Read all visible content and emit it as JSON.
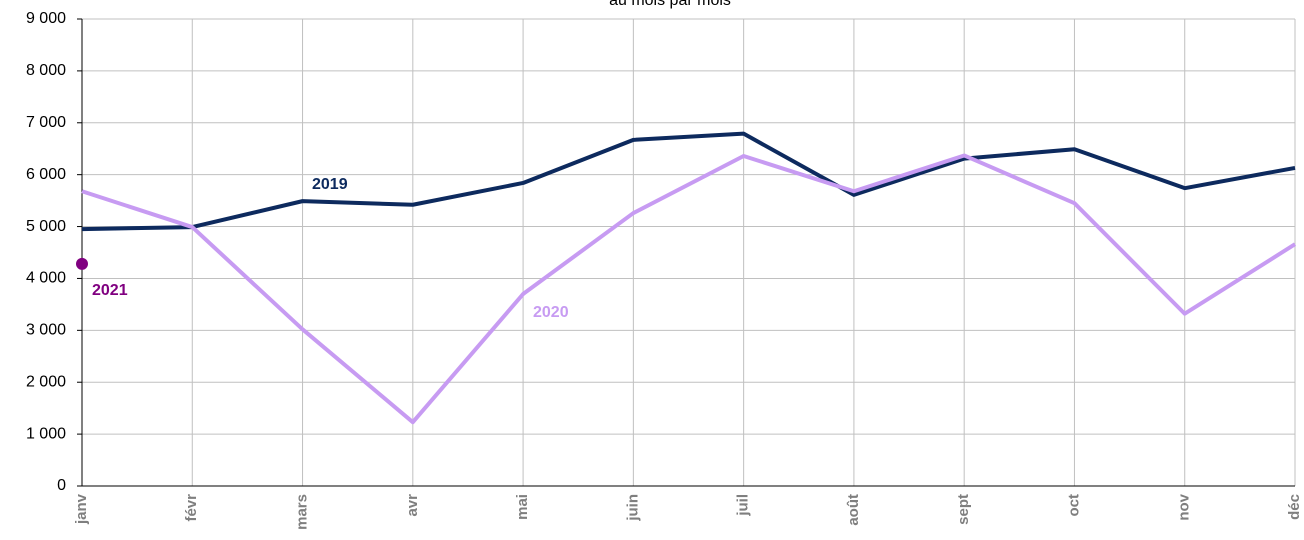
{
  "chart_data": {
    "type": "line",
    "title": "au mois par mois",
    "categories": [
      "janv",
      "févr",
      "mars",
      "avr",
      "mai",
      "juin",
      "juil",
      "août",
      "sept",
      "oct",
      "nov",
      "déc"
    ],
    "series": [
      {
        "name": "2019",
        "color": "#0d2a5e",
        "values": [
          4950,
          4990,
          5490,
          5420,
          5840,
          6670,
          6790,
          5610,
          6310,
          6490,
          5740,
          6130
        ]
      },
      {
        "name": "2020",
        "color": "#c79bf2",
        "values": [
          5680,
          4990,
          3020,
          1230,
          3700,
          5260,
          6360,
          5680,
          6370,
          5450,
          3320,
          4660
        ]
      },
      {
        "name": "2021",
        "color": "#800080",
        "values": [
          4280,
          null,
          null,
          null,
          null,
          null,
          null,
          null,
          null,
          null,
          null,
          null
        ]
      }
    ],
    "ylim": [
      0,
      9000
    ],
    "yticks": [
      {
        "value": 0,
        "label": "0"
      },
      {
        "value": 1000,
        "label": "1 000"
      },
      {
        "value": 2000,
        "label": "2 000"
      },
      {
        "value": 3000,
        "label": "3 000"
      },
      {
        "value": 4000,
        "label": "4 000"
      },
      {
        "value": 5000,
        "label": "5 000"
      },
      {
        "value": 6000,
        "label": "6 000"
      },
      {
        "value": 7000,
        "label": "7 000"
      },
      {
        "value": 8000,
        "label": "8 000"
      },
      {
        "value": 9000,
        "label": "9 000"
      }
    ],
    "grid": true
  }
}
